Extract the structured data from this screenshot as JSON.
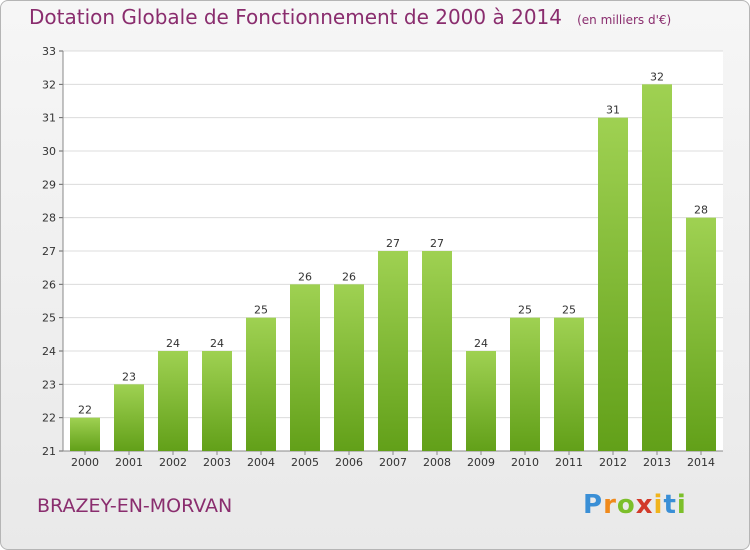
{
  "title": "Dotation Globale de Fonctionnement de 2000 à 2014",
  "unit_note": "(en milliers d'€)",
  "commune": "BRAZEY-EN-MORVAN",
  "brand": {
    "letters": [
      "P",
      "r",
      "o",
      "x",
      "i",
      "t",
      "i"
    ],
    "colors": [
      "#3a8fd6",
      "#f08a1c",
      "#7cbf2a",
      "#d23a2a",
      "#f0b41c",
      "#3a8fd6",
      "#7cbf2a"
    ]
  },
  "colors": {
    "bar_top": "#9fd152",
    "bar_bottom": "#62a019",
    "title": "#8a2d6e",
    "grid": "#dcdcdc"
  },
  "chart_data": {
    "type": "bar",
    "categories": [
      "2000",
      "2001",
      "2002",
      "2003",
      "2004",
      "2005",
      "2006",
      "2007",
      "2008",
      "2009",
      "2010",
      "2011",
      "2012",
      "2013",
      "2014"
    ],
    "values": [
      22,
      23,
      24,
      24,
      25,
      26,
      26,
      27,
      27,
      24,
      25,
      25,
      31,
      32,
      28
    ],
    "title": "Dotation Globale de Fonctionnement de 2000 à 2014",
    "xlabel": "",
    "ylabel": "",
    "ylim": [
      21,
      33
    ],
    "yticks": [
      21,
      22,
      23,
      24,
      25,
      26,
      27,
      28,
      29,
      30,
      31,
      32,
      33
    ],
    "grid": "horizontal",
    "legend": "none"
  }
}
